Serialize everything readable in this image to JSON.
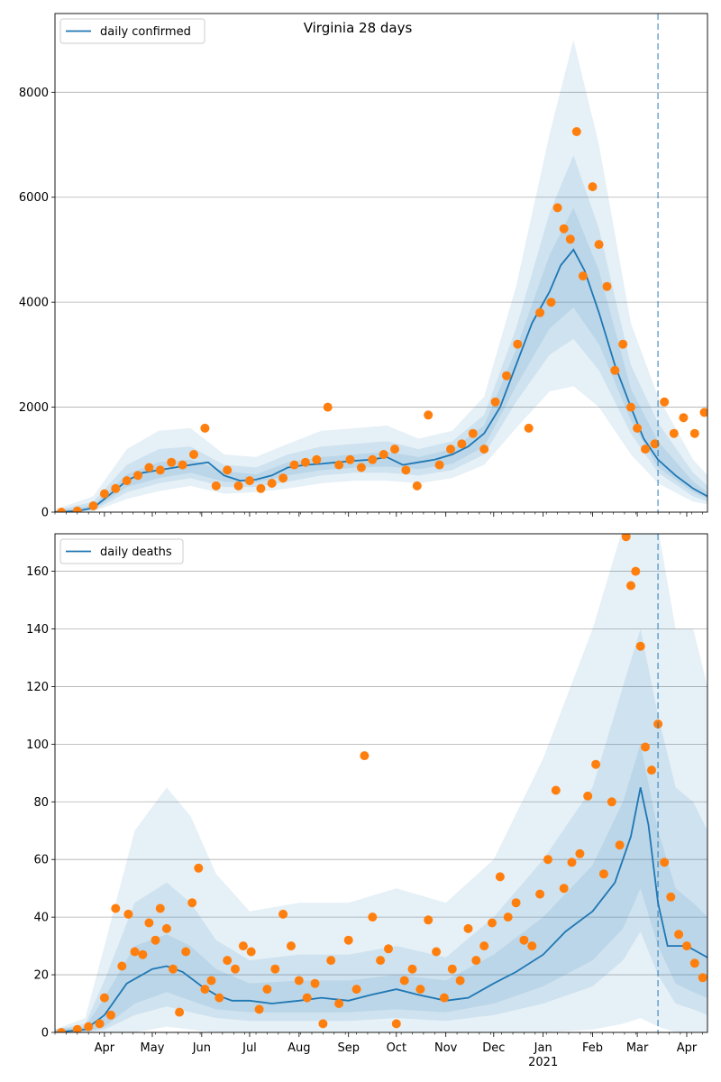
{
  "figure": {
    "title": "Virginia 28 days"
  },
  "colors": {
    "line": "#1f77b4",
    "points": "#ff7f0e",
    "band": "#1f77b4",
    "grid": "#b0b0b0",
    "vline": "#1f77b4"
  },
  "x_axis": {
    "domain": [
      "2020-03-01",
      "2021-04-14"
    ],
    "ticks": [
      {
        "date": "2020-04-01",
        "label": "Apr"
      },
      {
        "date": "2020-05-01",
        "label": "May"
      },
      {
        "date": "2020-06-01",
        "label": "Jun"
      },
      {
        "date": "2020-07-01",
        "label": "Jul"
      },
      {
        "date": "2020-08-01",
        "label": "Aug"
      },
      {
        "date": "2020-09-01",
        "label": "Sep"
      },
      {
        "date": "2020-10-01",
        "label": "Oct"
      },
      {
        "date": "2020-11-01",
        "label": "Nov"
      },
      {
        "date": "2020-12-01",
        "label": "Dec"
      },
      {
        "date": "2021-01-01",
        "label": "Jan"
      },
      {
        "date": "2021-02-01",
        "label": "Feb"
      },
      {
        "date": "2021-03-01",
        "label": "Mar"
      },
      {
        "date": "2021-04-01",
        "label": "Apr"
      }
    ],
    "year_label": "2021",
    "vline_date": "2021-03-14"
  },
  "chart_data": [
    {
      "type": "line",
      "name": "daily confirmed",
      "legend": "upper-left",
      "ylim": [
        0,
        9500
      ],
      "yticks": [
        0,
        2000,
        4000,
        6000,
        8000
      ],
      "grid": "horizontal",
      "model_line": {
        "x": [
          "2020-03-01",
          "2020-03-15",
          "2020-03-25",
          "2020-04-05",
          "2020-04-15",
          "2020-04-25",
          "2020-05-05",
          "2020-05-15",
          "2020-05-25",
          "2020-06-05",
          "2020-06-15",
          "2020-06-25",
          "2020-07-05",
          "2020-07-15",
          "2020-07-25",
          "2020-08-05",
          "2020-08-15",
          "2020-08-25",
          "2020-09-05",
          "2020-09-15",
          "2020-09-25",
          "2020-10-05",
          "2020-10-15",
          "2020-10-25",
          "2020-11-05",
          "2020-11-15",
          "2020-11-25",
          "2020-12-05",
          "2020-12-15",
          "2020-12-25",
          "2021-01-05",
          "2021-01-12",
          "2021-01-20",
          "2021-01-27",
          "2021-02-05",
          "2021-02-15",
          "2021-02-25",
          "2021-03-05",
          "2021-03-14",
          "2021-03-25",
          "2021-04-05",
          "2021-04-14"
        ],
        "y": [
          0,
          20,
          80,
          350,
          600,
          750,
          800,
          850,
          900,
          950,
          700,
          600,
          620,
          700,
          850,
          900,
          920,
          950,
          980,
          1000,
          1050,
          900,
          950,
          1000,
          1100,
          1250,
          1500,
          2000,
          2800,
          3600,
          4200,
          4700,
          5000,
          4600,
          3800,
          2800,
          2000,
          1400,
          1000,
          700,
          450,
          300
        ]
      },
      "bands": [
        {
          "x": [
            "2020-03-01",
            "2020-03-25",
            "2020-04-15",
            "2020-05-05",
            "2020-05-25",
            "2020-06-15",
            "2020-07-05",
            "2020-07-25",
            "2020-08-15",
            "2020-09-05",
            "2020-09-25",
            "2020-10-15",
            "2020-11-05",
            "2020-11-25",
            "2020-12-15",
            "2021-01-05",
            "2021-01-20",
            "2021-02-05",
            "2021-02-25",
            "2021-03-14",
            "2021-04-05",
            "2021-04-14"
          ],
          "lo": [
            0,
            10,
            250,
            400,
            500,
            350,
            380,
            450,
            550,
            600,
            600,
            550,
            650,
            900,
            1600,
            2300,
            2400,
            2000,
            1100,
            550,
            200,
            150
          ],
          "hi": [
            50,
            300,
            1200,
            1550,
            1600,
            1100,
            1050,
            1300,
            1550,
            1600,
            1650,
            1400,
            1550,
            2200,
            4300,
            7200,
            9000,
            7000,
            3600,
            2200,
            1000,
            700
          ]
        },
        {
          "x": [
            "2020-03-01",
            "2020-03-25",
            "2020-04-15",
            "2020-05-05",
            "2020-05-25",
            "2020-06-15",
            "2020-07-05",
            "2020-07-25",
            "2020-08-15",
            "2020-09-05",
            "2020-09-25",
            "2020-10-15",
            "2020-11-05",
            "2020-11-25",
            "2020-12-15",
            "2021-01-05",
            "2021-01-20",
            "2021-02-05",
            "2021-02-25",
            "2021-03-14",
            "2021-04-05",
            "2021-04-14"
          ],
          "lo": [
            0,
            30,
            380,
            550,
            650,
            480,
            480,
            580,
            700,
            750,
            750,
            700,
            800,
            1100,
            2100,
            3000,
            3300,
            2700,
            1500,
            750,
            300,
            200
          ],
          "hi": [
            30,
            200,
            900,
            1200,
            1250,
            900,
            850,
            1100,
            1250,
            1300,
            1350,
            1200,
            1350,
            1850,
            3500,
            5700,
            6800,
            5400,
            2800,
            1700,
            750,
            500
          ]
        },
        {
          "x": [
            "2020-03-01",
            "2020-03-25",
            "2020-04-15",
            "2020-05-05",
            "2020-05-25",
            "2020-06-15",
            "2020-07-05",
            "2020-07-25",
            "2020-08-15",
            "2020-09-05",
            "2020-09-25",
            "2020-10-15",
            "2020-11-05",
            "2020-11-25",
            "2020-12-15",
            "2021-01-05",
            "2021-01-20",
            "2021-02-05",
            "2021-02-25",
            "2021-03-14",
            "2021-04-05",
            "2021-04-14"
          ],
          "lo": [
            0,
            50,
            480,
            650,
            750,
            580,
            560,
            700,
            800,
            850,
            870,
            820,
            920,
            1250,
            2400,
            3500,
            3900,
            3200,
            1750,
            850,
            380,
            250
          ],
          "hi": [
            20,
            130,
            720,
            950,
            1000,
            780,
            720,
            950,
            1050,
            1100,
            1150,
            1050,
            1200,
            1650,
            3100,
            4900,
            5800,
            4600,
            2350,
            1350,
            580,
            380
          ]
        }
      ],
      "observed": {
        "x": [
          "2020-03-05",
          "2020-03-15",
          "2020-03-25",
          "2020-04-01",
          "2020-04-08",
          "2020-04-15",
          "2020-04-22",
          "2020-04-29",
          "2020-05-06",
          "2020-05-13",
          "2020-05-20",
          "2020-05-27",
          "2020-06-03",
          "2020-06-10",
          "2020-06-17",
          "2020-06-24",
          "2020-07-01",
          "2020-07-08",
          "2020-07-15",
          "2020-07-22",
          "2020-07-29",
          "2020-08-05",
          "2020-08-12",
          "2020-08-19",
          "2020-08-26",
          "2020-09-02",
          "2020-09-09",
          "2020-09-16",
          "2020-09-23",
          "2020-09-30",
          "2020-10-07",
          "2020-10-14",
          "2020-10-21",
          "2020-10-28",
          "2020-11-04",
          "2020-11-11",
          "2020-11-18",
          "2020-11-25",
          "2020-12-02",
          "2020-12-09",
          "2020-12-16",
          "2020-12-23",
          "2020-12-30",
          "2021-01-06",
          "2021-01-10",
          "2021-01-14",
          "2021-01-18",
          "2021-01-22",
          "2021-01-26",
          "2021-02-01",
          "2021-02-05",
          "2021-02-10",
          "2021-02-15",
          "2021-02-20",
          "2021-02-25",
          "2021-03-01",
          "2021-03-06",
          "2021-03-12",
          "2021-03-18",
          "2021-03-24",
          "2021-03-30",
          "2021-04-06",
          "2021-04-12"
        ],
        "y": [
          0,
          20,
          120,
          350,
          450,
          600,
          700,
          850,
          800,
          950,
          900,
          1100,
          1600,
          500,
          800,
          500,
          600,
          450,
          550,
          650,
          900,
          950,
          1000,
          2000,
          900,
          1000,
          850,
          1000,
          1100,
          1200,
          800,
          500,
          1850,
          900,
          1200,
          1300,
          1500,
          1200,
          2100,
          2600,
          3200,
          1600,
          3800,
          4000,
          5800,
          5400,
          5200,
          7250,
          4500,
          6200,
          5100,
          4300,
          2700,
          3200,
          2000,
          1600,
          1200,
          1300,
          2100,
          1500,
          1800,
          1500,
          1900
        ]
      }
    },
    {
      "type": "line",
      "name": "daily deaths",
      "legend": "upper-left",
      "ylim": [
        0,
        173
      ],
      "yticks": [
        0,
        20,
        40,
        60,
        80,
        100,
        120,
        140,
        160
      ],
      "grid": "horizontal",
      "model_line": {
        "x": [
          "2020-03-01",
          "2020-03-20",
          "2020-04-01",
          "2020-04-15",
          "2020-05-01",
          "2020-05-10",
          "2020-05-20",
          "2020-06-01",
          "2020-06-10",
          "2020-06-20",
          "2020-07-01",
          "2020-07-15",
          "2020-08-01",
          "2020-08-15",
          "2020-09-01",
          "2020-09-15",
          "2020-10-01",
          "2020-10-15",
          "2020-11-01",
          "2020-11-15",
          "2020-12-01",
          "2020-12-15",
          "2021-01-01",
          "2021-01-15",
          "2021-02-01",
          "2021-02-15",
          "2021-02-25",
          "2021-03-03",
          "2021-03-08",
          "2021-03-14",
          "2021-03-20",
          "2021-04-01",
          "2021-04-14"
        ],
        "y": [
          0,
          1,
          6,
          17,
          22,
          23,
          21,
          16,
          13,
          11,
          11,
          10,
          11,
          12,
          11,
          13,
          15,
          13,
          11,
          12,
          17,
          21,
          27,
          35,
          42,
          52,
          68,
          85,
          72,
          45,
          30,
          30,
          26
        ]
      },
      "bands": [
        {
          "x": [
            "2020-03-01",
            "2020-03-20",
            "2020-04-01",
            "2020-04-20",
            "2020-05-10",
            "2020-05-25",
            "2020-06-10",
            "2020-07-01",
            "2020-08-01",
            "2020-09-01",
            "2020-10-01",
            "2020-11-01",
            "2020-12-01",
            "2021-01-01",
            "2021-02-01",
            "2021-02-20",
            "2021-03-03",
            "2021-03-14",
            "2021-03-25",
            "2021-04-05",
            "2021-04-14"
          ],
          "lo": [
            0,
            0,
            0,
            0,
            2,
            1,
            0,
            0,
            0,
            0,
            0,
            0,
            0,
            0,
            1,
            3,
            5,
            2,
            0,
            0,
            0
          ],
          "hi": [
            1,
            5,
            30,
            70,
            85,
            75,
            55,
            42,
            45,
            45,
            50,
            45,
            60,
            95,
            140,
            175,
            180,
            175,
            140,
            140,
            120
          ]
        },
        {
          "x": [
            "2020-03-01",
            "2020-03-20",
            "2020-04-01",
            "2020-04-20",
            "2020-05-10",
            "2020-05-25",
            "2020-06-10",
            "2020-07-01",
            "2020-08-01",
            "2020-09-01",
            "2020-10-01",
            "2020-11-01",
            "2020-12-01",
            "2021-01-01",
            "2021-02-01",
            "2021-02-20",
            "2021-03-03",
            "2021-03-14",
            "2021-03-25",
            "2021-04-05",
            "2021-04-14"
          ],
          "lo": [
            0,
            0,
            1,
            6,
            9,
            7,
            5,
            4,
            4,
            4,
            5,
            4,
            6,
            10,
            16,
            25,
            35,
            20,
            10,
            8,
            6
          ],
          "hi": [
            1,
            3,
            18,
            45,
            52,
            45,
            32,
            25,
            27,
            27,
            30,
            26,
            40,
            60,
            85,
            120,
            140,
            110,
            85,
            80,
            70
          ]
        },
        {
          "x": [
            "2020-03-01",
            "2020-03-20",
            "2020-04-01",
            "2020-04-20",
            "2020-05-10",
            "2020-05-25",
            "2020-06-10",
            "2020-07-01",
            "2020-08-01",
            "2020-09-01",
            "2020-10-01",
            "2020-11-01",
            "2020-12-01",
            "2021-01-01",
            "2021-02-01",
            "2021-02-20",
            "2021-03-03",
            "2021-03-14",
            "2021-03-25",
            "2021-04-05",
            "2021-04-14"
          ],
          "lo": [
            0,
            0,
            2,
            10,
            14,
            11,
            8,
            7,
            7,
            7,
            8,
            7,
            10,
            16,
            25,
            36,
            50,
            30,
            17,
            14,
            12
          ],
          "hi": [
            1,
            2,
            12,
            30,
            34,
            30,
            22,
            17,
            18,
            18,
            20,
            18,
            27,
            40,
            58,
            80,
            100,
            70,
            50,
            45,
            40
          ]
        }
      ],
      "observed": {
        "x": [
          "2020-03-05",
          "2020-03-15",
          "2020-03-22",
          "2020-03-29",
          "2020-04-01",
          "2020-04-05",
          "2020-04-08",
          "2020-04-12",
          "2020-04-16",
          "2020-04-20",
          "2020-04-25",
          "2020-04-29",
          "2020-05-03",
          "2020-05-06",
          "2020-05-10",
          "2020-05-14",
          "2020-05-18",
          "2020-05-22",
          "2020-05-26",
          "2020-05-30",
          "2020-06-03",
          "2020-06-07",
          "2020-06-12",
          "2020-06-17",
          "2020-06-22",
          "2020-06-27",
          "2020-07-02",
          "2020-07-07",
          "2020-07-12",
          "2020-07-17",
          "2020-07-22",
          "2020-07-27",
          "2020-08-01",
          "2020-08-06",
          "2020-08-11",
          "2020-08-16",
          "2020-08-21",
          "2020-08-26",
          "2020-09-01",
          "2020-09-06",
          "2020-09-11",
          "2020-09-16",
          "2020-09-21",
          "2020-09-26",
          "2020-10-01",
          "2020-10-06",
          "2020-10-11",
          "2020-10-16",
          "2020-10-21",
          "2020-10-26",
          "2020-10-31",
          "2020-11-05",
          "2020-11-10",
          "2020-11-15",
          "2020-11-20",
          "2020-11-25",
          "2020-11-30",
          "2020-12-05",
          "2020-12-10",
          "2020-12-15",
          "2020-12-20",
          "2020-12-25",
          "2020-12-30",
          "2021-01-04",
          "2021-01-09",
          "2021-01-14",
          "2021-01-19",
          "2021-01-24",
          "2021-01-29",
          "2021-02-03",
          "2021-02-08",
          "2021-02-13",
          "2021-02-18",
          "2021-02-22",
          "2021-02-25",
          "2021-02-28",
          "2021-03-03",
          "2021-03-06",
          "2021-03-10",
          "2021-03-14",
          "2021-03-18",
          "2021-03-22",
          "2021-03-27",
          "2021-04-01",
          "2021-04-06",
          "2021-04-11"
        ],
        "y": [
          0,
          1,
          2,
          3,
          12,
          6,
          43,
          23,
          41,
          28,
          27,
          38,
          32,
          43,
          36,
          22,
          7,
          28,
          45,
          57,
          15,
          18,
          12,
          25,
          22,
          30,
          28,
          8,
          15,
          22,
          41,
          30,
          18,
          12,
          17,
          3,
          25,
          10,
          32,
          15,
          96,
          40,
          25,
          29,
          3,
          18,
          22,
          15,
          39,
          28,
          12,
          22,
          18,
          36,
          25,
          30,
          38,
          54,
          40,
          45,
          32,
          30,
          48,
          60,
          84,
          50,
          59,
          62,
          82,
          93,
          55,
          80,
          65,
          172,
          155,
          160,
          134,
          99,
          91,
          107,
          59,
          47,
          34,
          30,
          24,
          19
        ]
      }
    }
  ]
}
